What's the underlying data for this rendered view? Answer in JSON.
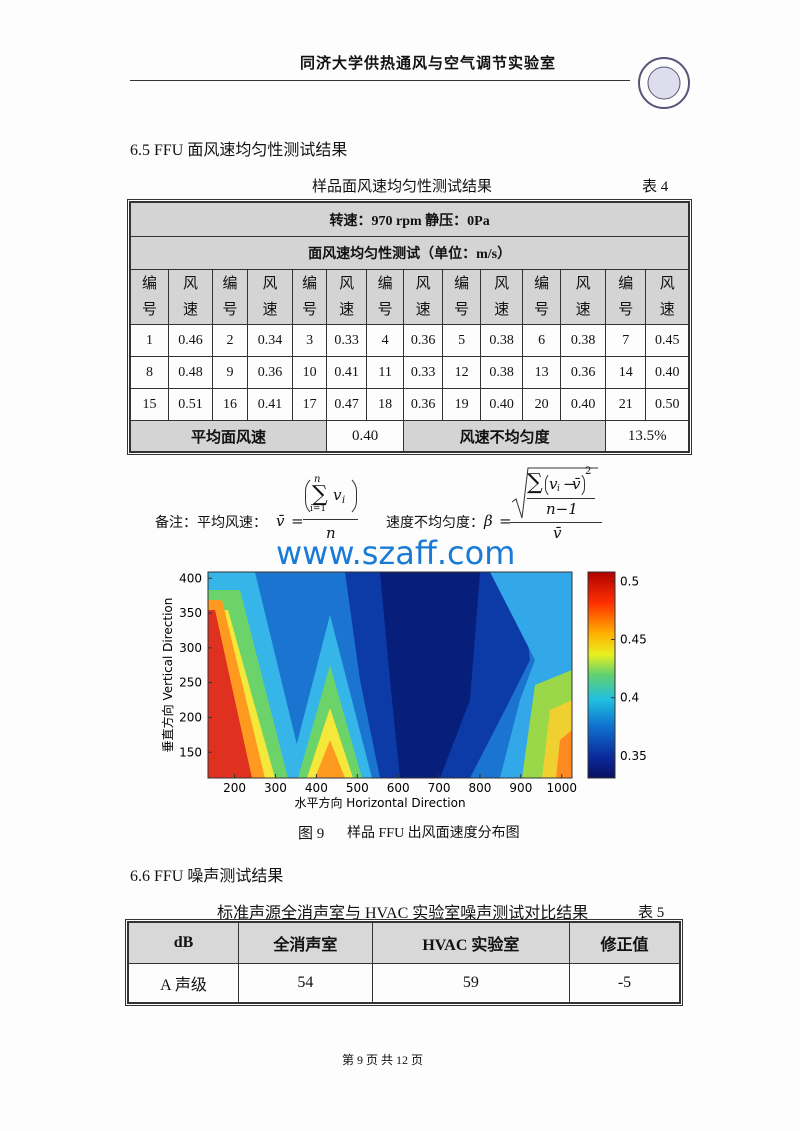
{
  "header": {
    "title": "同济大学供热通风与空气调节实验室"
  },
  "section1": {
    "heading": "6.5 FFU 面风速均匀性测试结果"
  },
  "table1": {
    "caption": "样品面风速均匀性测试结果",
    "number": "表 4",
    "condition": "转速：970 rpm  静压：0Pa",
    "subtitle": "面风速均匀性测试（单位：m/s）",
    "header": [
      "编号",
      "风速",
      "编号",
      "风速",
      "编号",
      "风速",
      "编号",
      "风速",
      "编号",
      "风速",
      "编号",
      "风速",
      "编号",
      "风速"
    ],
    "rows": [
      [
        "1",
        "0.46",
        "2",
        "0.34",
        "3",
        "0.33",
        "4",
        "0.36",
        "5",
        "0.38",
        "6",
        "0.38",
        "7",
        "0.45"
      ],
      [
        "8",
        "0.48",
        "9",
        "0.36",
        "10",
        "0.41",
        "11",
        "0.33",
        "12",
        "0.38",
        "13",
        "0.36",
        "14",
        "0.40"
      ],
      [
        "15",
        "0.51",
        "16",
        "0.41",
        "17",
        "0.47",
        "18",
        "0.36",
        "19",
        "0.40",
        "20",
        "0.40",
        "21",
        "0.50"
      ]
    ],
    "summary": [
      "平均面风速",
      "0.40",
      "风速不均匀度",
      "13.5%"
    ]
  },
  "note": {
    "label": "备注：平均风速：",
    "label2": "速度不均匀度：",
    "formula1": {
      "lhs": "v̄",
      "eq": "=",
      "sum": "∑",
      "upper": "n",
      "lower": "i=1",
      "var": "v",
      "sub": "i",
      "den": "n"
    },
    "formula2": {
      "lhs": "β",
      "eq": "=",
      "sum": "∑",
      "var": "v",
      "sub": "i",
      "minus": "−",
      "mean": "v̄",
      "power": "2",
      "inner_den": "n−1",
      "den": "v̄"
    }
  },
  "watermark": "www.szaff.com",
  "figure": {
    "xlim": [
      135,
      1025
    ],
    "ylim": [
      113,
      409
    ],
    "xticks": [
      200,
      300,
      400,
      500,
      600,
      700,
      800,
      900,
      1000
    ],
    "yticks": [
      150,
      200,
      250,
      300,
      350,
      400
    ],
    "clim": [
      0.331,
      0.508
    ],
    "cticks": [
      0.35,
      0.4,
      0.45,
      0.5
    ],
    "xlabel": "水平方向 Horizontal Direction",
    "ylabel": "垂直方向 Vertical Direction",
    "caption_label": "图 9",
    "caption": "样品 FFU 出风面速度分布图"
  },
  "section2": {
    "heading": "6.6 FFU 噪声测试结果"
  },
  "table2": {
    "caption": "标准声源全消声室与 HVAC 实验室噪声测试对比结果",
    "number": "表 5",
    "header": [
      "dB",
      "全消声室",
      "HVAC 实验室",
      "修正值"
    ],
    "rows": [
      [
        "A 声级",
        "54",
        "59",
        "-5"
      ]
    ]
  },
  "footer": {
    "page": "第 9 页   共 12 页"
  }
}
